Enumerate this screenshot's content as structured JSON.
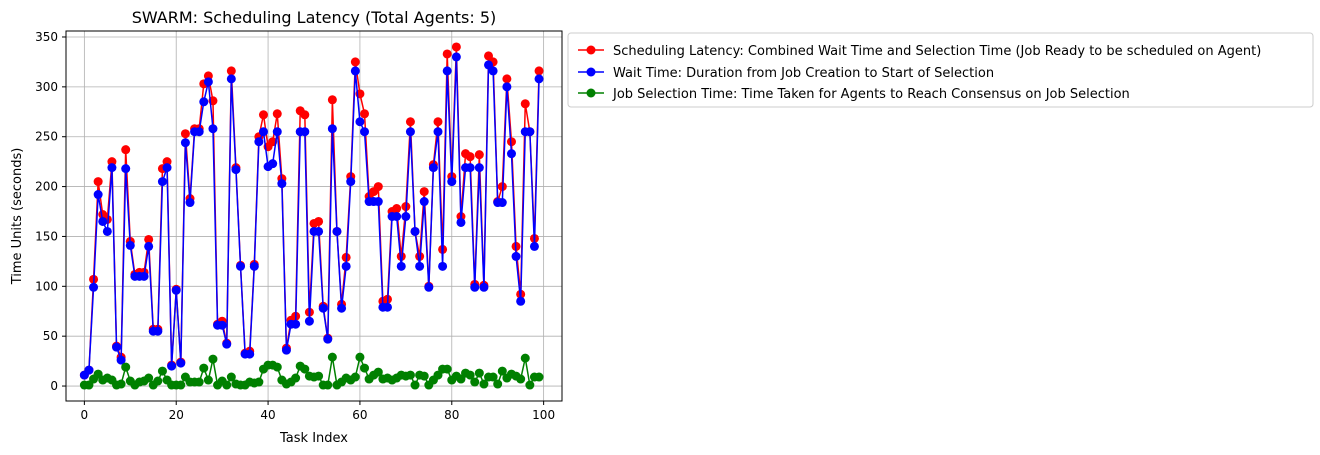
{
  "chart_data": {
    "type": "line",
    "title": "SWARM: Scheduling Latency (Total Agents: 5)",
    "xlabel": "Task Index",
    "ylabel": "Time Units (seconds)",
    "xlim": [
      -4,
      104
    ],
    "ylim": [
      -15,
      356
    ],
    "xticks": [
      0,
      20,
      40,
      60,
      80,
      100
    ],
    "yticks": [
      0,
      50,
      100,
      150,
      200,
      250,
      300,
      350
    ],
    "grid": true,
    "legend_position": "outside upper right",
    "series": [
      {
        "name": "Scheduling Latency: Combined Wait Time and Selection Time (Job Ready to be scheduled on Agent)",
        "color": "#ff0000",
        "values": [
          11,
          16,
          107,
          205,
          172,
          167,
          225,
          40,
          29,
          237,
          145,
          112,
          114,
          114,
          147,
          57,
          57,
          218,
          225,
          21,
          97,
          24,
          253,
          188,
          258,
          258,
          303,
          311,
          286,
          62,
          65,
          43,
          316,
          219,
          121,
          33,
          35,
          122,
          250,
          272,
          240,
          245,
          273,
          208,
          38,
          66,
          70,
          276,
          272,
          74,
          163,
          165,
          80,
          48,
          287,
          155,
          82,
          129,
          210,
          325,
          293,
          273,
          190,
          195,
          200,
          85,
          87,
          175,
          178,
          130,
          180,
          265,
          155,
          130,
          195,
          100,
          222,
          265,
          137,
          333,
          210,
          340,
          170,
          233,
          230,
          102,
          232,
          101,
          331,
          325,
          185,
          200,
          308,
          245,
          140,
          92,
          283,
          255,
          148,
          316
        ]
      },
      {
        "name": "Wait Time: Duration from Job Creation to Start of Selection",
        "color": "#0000ff",
        "values": [
          11,
          16,
          99,
          192,
          165,
          155,
          219,
          39,
          26,
          218,
          141,
          110,
          110,
          110,
          140,
          55,
          55,
          205,
          219,
          20,
          96,
          23,
          244,
          184,
          255,
          255,
          285,
          305,
          258,
          61,
          61,
          42,
          308,
          217,
          120,
          32,
          32,
          120,
          245,
          255,
          220,
          223,
          255,
          203,
          36,
          62,
          62,
          255,
          255,
          65,
          155,
          155,
          78,
          47,
          258,
          155,
          78,
          120,
          205,
          316,
          265,
          255,
          185,
          185,
          185,
          79,
          79,
          170,
          170,
          120,
          170,
          255,
          155,
          120,
          185,
          99,
          219,
          255,
          120,
          316,
          205,
          330,
          164,
          219,
          219,
          99,
          219,
          99,
          322,
          316,
          184,
          184,
          300,
          233,
          130,
          85,
          255,
          255,
          140,
          308
        ]
      },
      {
        "name": "Job Selection Time: Time Taken for Agents to Reach Consensus on Job Selection",
        "color": "#008000",
        "values": [
          1,
          1,
          7,
          12,
          6,
          8,
          6,
          1,
          2,
          19,
          5,
          1,
          4,
          5,
          8,
          1,
          5,
          15,
          6,
          1,
          1,
          1,
          9,
          4,
          4,
          4,
          18,
          6,
          27,
          1,
          5,
          1,
          9,
          2,
          1,
          1,
          4,
          3,
          4,
          17,
          21,
          21,
          19,
          6,
          2,
          4,
          8,
          20,
          17,
          10,
          9,
          10,
          1,
          1,
          29,
          1,
          4,
          8,
          6,
          9,
          29,
          18,
          7,
          11,
          14,
          7,
          8,
          6,
          8,
          11,
          10,
          11,
          1,
          11,
          10,
          1,
          6,
          11,
          17,
          17,
          6,
          10,
          7,
          13,
          11,
          4,
          13,
          2,
          9,
          9,
          2,
          15,
          8,
          12,
          10,
          7,
          28,
          1,
          9,
          9
        ]
      }
    ]
  }
}
